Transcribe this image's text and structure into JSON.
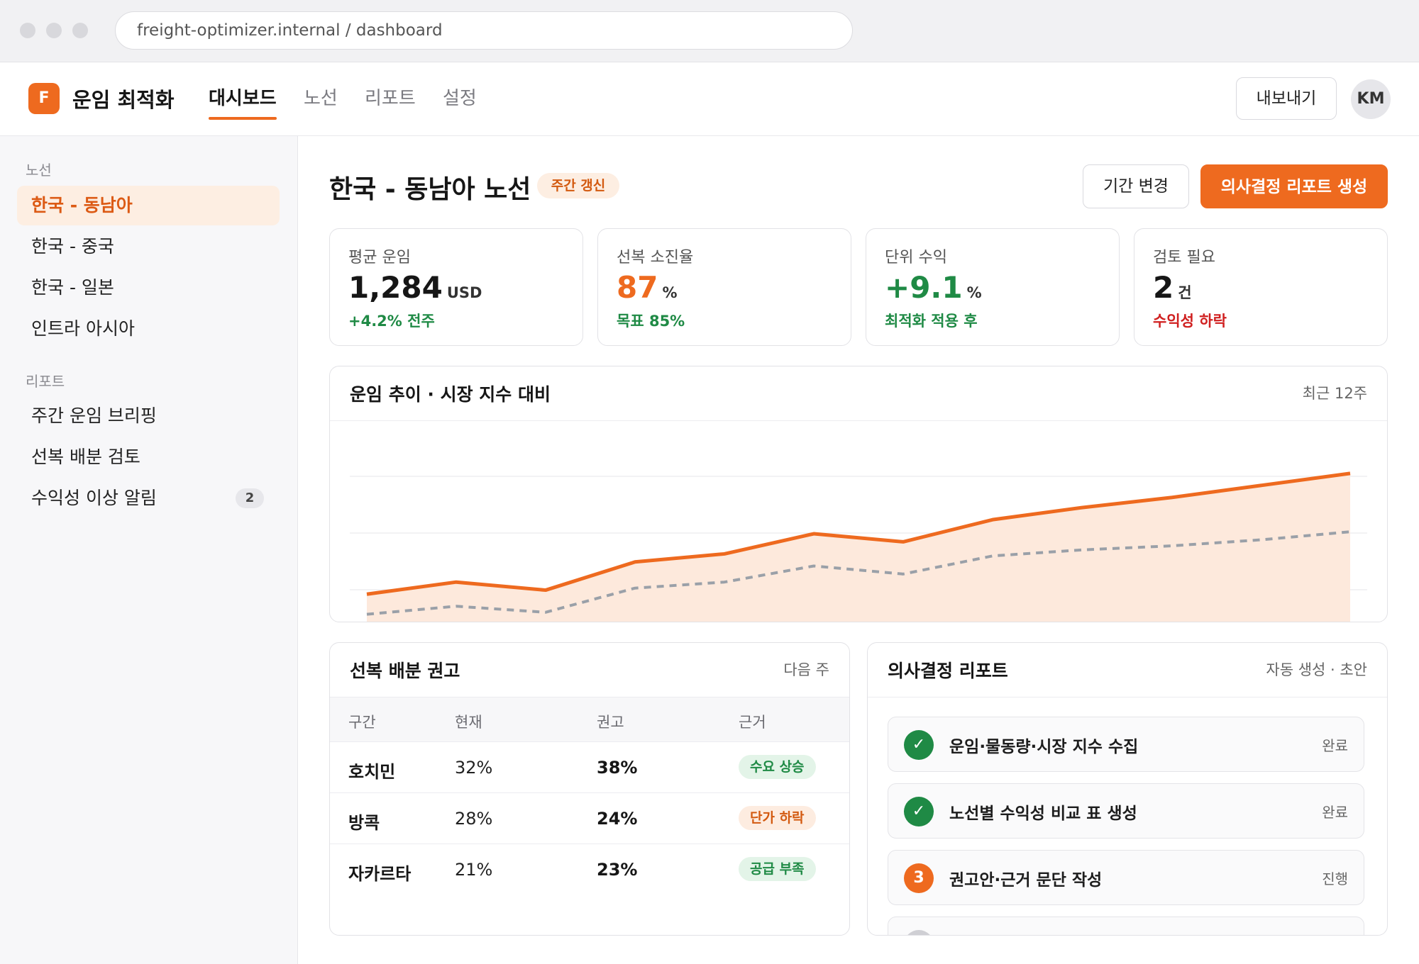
{
  "browser": {
    "url": "freight-optimizer.internal / dashboard"
  },
  "app": {
    "logo_letter": "F",
    "name": "운임 최적화",
    "nav": [
      "대시보드",
      "노선",
      "리포트",
      "설정"
    ],
    "active_nav": "대시보드",
    "export_label": "내보내기",
    "avatar_initials": "KM"
  },
  "sidebar": {
    "routes_title": "노선",
    "routes": [
      "한국 - 동남아",
      "한국 - 중국",
      "한국 - 일본",
      "인트라 아시아"
    ],
    "active_route": "한국 - 동남아",
    "reports_title": "리포트",
    "reports": [
      {
        "label": "주간 운임 브리핑",
        "count": ""
      },
      {
        "label": "선복 배분 검토",
        "count": ""
      },
      {
        "label": "수익성 이상 알림",
        "count": "2"
      }
    ]
  },
  "page": {
    "title": "한국 - 동남아 노선",
    "badge": "주간 갱신",
    "period_button": "기간 변경",
    "primary_button": "의사결정 리포트 생성"
  },
  "kpis": [
    {
      "label": "평균 운임",
      "value": "1,284",
      "unit": "USD",
      "sub": "+4.2% 전주",
      "value_color": "#161616",
      "sub_color": "#1f8a45"
    },
    {
      "label": "선복 소진율",
      "value": "87",
      "unit": "%",
      "sub": "목표 85%",
      "value_color": "#ee6a1f",
      "sub_color": "#1f8a45"
    },
    {
      "label": "단위 수익",
      "value": "+9.1",
      "unit": "%",
      "sub": "최적화 적용 후",
      "value_color": "#1f8a45",
      "sub_color": "#1f8a45"
    },
    {
      "label": "검토 필요",
      "value": "2",
      "unit": "건",
      "sub": "수익성 하락",
      "value_color": "#161616",
      "sub_color": "#d02020"
    }
  ],
  "trend_card": {
    "title": "운임 추이 · 시장 지수 대비",
    "meta": "최근 12주"
  },
  "chart_data": {
    "type": "area",
    "x": [
      1,
      2,
      3,
      4,
      5,
      6,
      7,
      8,
      9,
      10,
      11,
      12
    ],
    "series": [
      {
        "values": [
          0.14,
          0.2,
          0.16,
          0.3,
          0.34,
          0.44,
          0.4,
          0.51,
          0.57,
          0.62,
          0.68,
          0.74
        ],
        "color": "#ee6a1f",
        "style": "solid-area"
      },
      {
        "values": [
          0.04,
          0.08,
          0.05,
          0.17,
          0.2,
          0.28,
          0.24,
          0.33,
          0.36,
          0.38,
          0.41,
          0.45
        ],
        "color": "#9aa0a8",
        "style": "dashed"
      }
    ],
    "ylim": [
      0,
      1
    ],
    "grid": true,
    "legend": "none"
  },
  "allocation_card": {
    "title": "선복 배분 권고",
    "meta": "다음 주",
    "headers": [
      "구간",
      "현재",
      "권고",
      "근거"
    ],
    "rows": [
      {
        "segment": "호치민",
        "current": "32%",
        "recommended": "38%",
        "reason": "수요 상승",
        "reason_color": "#1f8a45",
        "reason_bg": "#e3f4e8"
      },
      {
        "segment": "방콕",
        "current": "28%",
        "recommended": "24%",
        "reason": "단가 하락",
        "reason_color": "#d35a10",
        "reason_bg": "#fdece0"
      },
      {
        "segment": "자카르타",
        "current": "21%",
        "recommended": "23%",
        "reason": "공급 부족",
        "reason_color": "#1f8a45",
        "reason_bg": "#e3f4e8"
      }
    ]
  },
  "report_card": {
    "title": "의사결정 리포트",
    "meta": "자동 생성 · 초안",
    "steps": [
      {
        "icon": "check-icon",
        "glyph": "✓",
        "label": "운임·물동량·시장 지수 수집",
        "status": "완료",
        "color": "#1f8a45"
      },
      {
        "icon": "check-icon",
        "glyph": "✓",
        "label": "노선별 수익성 비교 표 생성",
        "status": "완료",
        "color": "#1f8a45"
      },
      {
        "icon": "step-number-icon",
        "glyph": "3",
        "label": "권고안·근거 문단 작성",
        "status": "진행",
        "color": "#ee6a1f"
      }
    ]
  }
}
